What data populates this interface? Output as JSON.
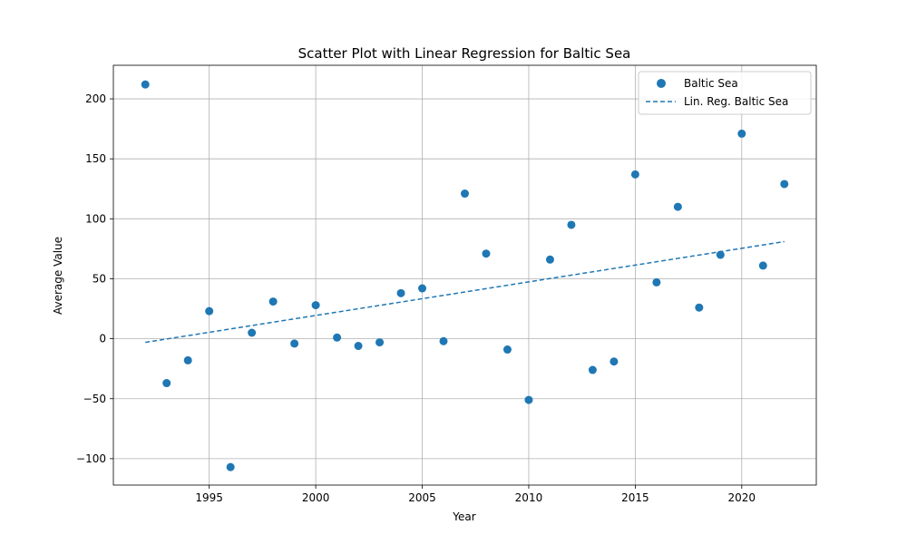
{
  "chart_data": {
    "type": "scatter",
    "title": "Scatter Plot with Linear Regression for Baltic Sea",
    "xlabel": "Year",
    "ylabel": "Average Value",
    "xlim": [
      1990.5,
      2023.5
    ],
    "ylim": [
      -122,
      228
    ],
    "xticks": [
      1995,
      2000,
      2005,
      2010,
      2015,
      2020
    ],
    "yticks": [
      -100,
      -50,
      0,
      50,
      100,
      150,
      200
    ],
    "ytick_labels": [
      "−100",
      "−50",
      "0",
      "50",
      "100",
      "150",
      "200"
    ],
    "grid": true,
    "legend_position": "top-right",
    "colors": {
      "series": "#1f77b4",
      "grid": "#b0b0b0",
      "axis": "#000000"
    },
    "series": [
      {
        "name": "Baltic Sea",
        "kind": "points",
        "x": [
          1992,
          1993,
          1994,
          1995,
          1996,
          1997,
          1998,
          1999,
          2000,
          2001,
          2002,
          2003,
          2004,
          2005,
          2006,
          2007,
          2008,
          2009,
          2010,
          2011,
          2012,
          2013,
          2014,
          2015,
          2016,
          2017,
          2018,
          2019,
          2020,
          2021,
          2022
        ],
        "y": [
          212,
          -37,
          -18,
          23,
          -107,
          5,
          31,
          -4,
          28,
          1,
          -6,
          -3,
          38,
          42,
          -2,
          121,
          71,
          -9,
          -51,
          66,
          95,
          -26,
          -19,
          137,
          47,
          110,
          26,
          70,
          171,
          61,
          129
        ]
      },
      {
        "name": "Lin. Reg. Baltic Sea",
        "kind": "line",
        "style": "dashed",
        "x": [
          1992,
          2022
        ],
        "y": [
          -3,
          81
        ]
      }
    ]
  }
}
